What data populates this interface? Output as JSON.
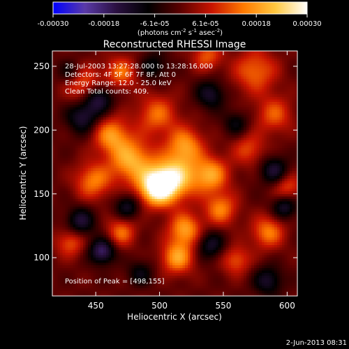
{
  "colorbar": {
    "ticks": [
      "-0.00030",
      "-0.00018",
      "-6.1e-05",
      "6.1e-05",
      "0.00018",
      "0.00030"
    ],
    "range": [
      -0.0003,
      0.0003
    ],
    "unit_base": "(photons cm",
    "unit_exp1": "-2",
    "unit_mid": " s",
    "unit_exp2": "-1",
    "unit_mid2": " asec",
    "unit_exp3": "-2",
    "unit_end": ")",
    "colors": [
      "#0000ff",
      "#5a3aa8",
      "#2a1040",
      "#000000",
      "#5a0000",
      "#c81400",
      "#ff7a00",
      "#ffc840",
      "#ffffff"
    ]
  },
  "chart_data": {
    "type": "heatmap",
    "title": "Reconstructed RHESSI Image",
    "xlabel": "Heliocentric X (arcsec)",
    "ylabel": "Heliocentric Y (arcsec)",
    "xlim": [
      416,
      608
    ],
    "ylim": [
      70,
      262
    ],
    "xticks": [
      "450",
      "500",
      "550",
      "600"
    ],
    "yticks": [
      "100",
      "150",
      "200",
      "250"
    ],
    "annotations": [
      "28-Jul-2003 13:27:28.000 to 13:28:16.000",
      "Detectors: 4F 5F 6F 7F 8F, Att 0",
      "Energy Range: 12.0 - 25.0 keV",
      "Clean     Total counts: 409."
    ],
    "peak_label": "Position of Peak = [498,155]",
    "peak": [
      498,
      155
    ],
    "blobs": [
      {
        "x": 498,
        "y": 155,
        "s": 10,
        "a": 1.0
      },
      {
        "x": 512,
        "y": 163,
        "s": 12,
        "a": 0.75
      },
      {
        "x": 478,
        "y": 176,
        "s": 12,
        "a": 0.65
      },
      {
        "x": 462,
        "y": 196,
        "s": 10,
        "a": 0.55
      },
      {
        "x": 498,
        "y": 212,
        "s": 11,
        "a": 0.45
      },
      {
        "x": 520,
        "y": 188,
        "s": 10,
        "a": 0.55
      },
      {
        "x": 540,
        "y": 165,
        "s": 10,
        "a": 0.6
      },
      {
        "x": 548,
        "y": 138,
        "s": 9,
        "a": 0.5
      },
      {
        "x": 520,
        "y": 122,
        "s": 9,
        "a": 0.6
      },
      {
        "x": 514,
        "y": 100,
        "s": 9,
        "a": 0.6
      },
      {
        "x": 448,
        "y": 160,
        "s": 10,
        "a": 0.5
      },
      {
        "x": 440,
        "y": 236,
        "s": 10,
        "a": 0.45
      },
      {
        "x": 470,
        "y": 245,
        "s": 9,
        "a": 0.45
      },
      {
        "x": 575,
        "y": 246,
        "s": 12,
        "a": 0.45
      },
      {
        "x": 590,
        "y": 212,
        "s": 10,
        "a": 0.4
      },
      {
        "x": 570,
        "y": 185,
        "s": 9,
        "a": 0.35
      },
      {
        "x": 585,
        "y": 120,
        "s": 9,
        "a": 0.5
      },
      {
        "x": 560,
        "y": 98,
        "s": 8,
        "a": 0.4
      },
      {
        "x": 430,
        "y": 112,
        "s": 8,
        "a": 0.4
      },
      {
        "x": 470,
        "y": 120,
        "s": 8,
        "a": 0.45
      },
      {
        "x": 600,
        "y": 155,
        "s": 8,
        "a": 0.4
      },
      {
        "x": 537,
        "y": 258,
        "s": 8,
        "a": 0.4
      },
      {
        "x": 440,
        "y": 210,
        "s": 9,
        "a": -0.45
      },
      {
        "x": 452,
        "y": 225,
        "s": 8,
        "a": -0.5
      },
      {
        "x": 438,
        "y": 128,
        "s": 8,
        "a": -0.45
      },
      {
        "x": 455,
        "y": 105,
        "s": 7,
        "a": -0.6
      },
      {
        "x": 475,
        "y": 140,
        "s": 7,
        "a": -0.4
      },
      {
        "x": 590,
        "y": 168,
        "s": 8,
        "a": -0.45
      },
      {
        "x": 598,
        "y": 140,
        "s": 7,
        "a": -0.45
      },
      {
        "x": 540,
        "y": 110,
        "s": 8,
        "a": -0.4
      },
      {
        "x": 540,
        "y": 228,
        "s": 8,
        "a": -0.4
      },
      {
        "x": 495,
        "y": 250,
        "s": 8,
        "a": -0.3
      },
      {
        "x": 585,
        "y": 82,
        "s": 8,
        "a": -0.4
      },
      {
        "x": 430,
        "y": 245,
        "s": 7,
        "a": -0.3
      },
      {
        "x": 560,
        "y": 205,
        "s": 7,
        "a": -0.3
      },
      {
        "x": 485,
        "y": 88,
        "s": 7,
        "a": -0.3
      }
    ]
  },
  "footer": {
    "date": "2-Jun-2013 08:31"
  }
}
